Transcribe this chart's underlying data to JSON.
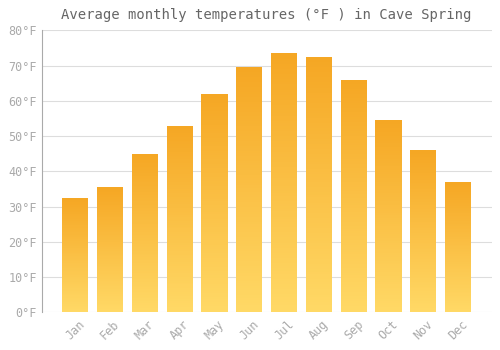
{
  "title": "Average monthly temperatures (°F ) in Cave Spring",
  "months": [
    "Jan",
    "Feb",
    "Mar",
    "Apr",
    "May",
    "Jun",
    "Jul",
    "Aug",
    "Sep",
    "Oct",
    "Nov",
    "Dec"
  ],
  "values": [
    32.5,
    35.5,
    45.0,
    53.0,
    62.0,
    69.5,
    73.5,
    72.5,
    66.0,
    54.5,
    46.0,
    37.0
  ],
  "bar_color_top": "#F5A623",
  "bar_color_bottom": "#FFD966",
  "background_color": "#FFFFFF",
  "grid_color": "#DDDDDD",
  "ylim": [
    0,
    80
  ],
  "yticks": [
    0,
    10,
    20,
    30,
    40,
    50,
    60,
    70,
    80
  ],
  "title_fontsize": 10,
  "tick_fontsize": 8.5,
  "tick_font_color": "#AAAAAA",
  "title_color": "#666666"
}
